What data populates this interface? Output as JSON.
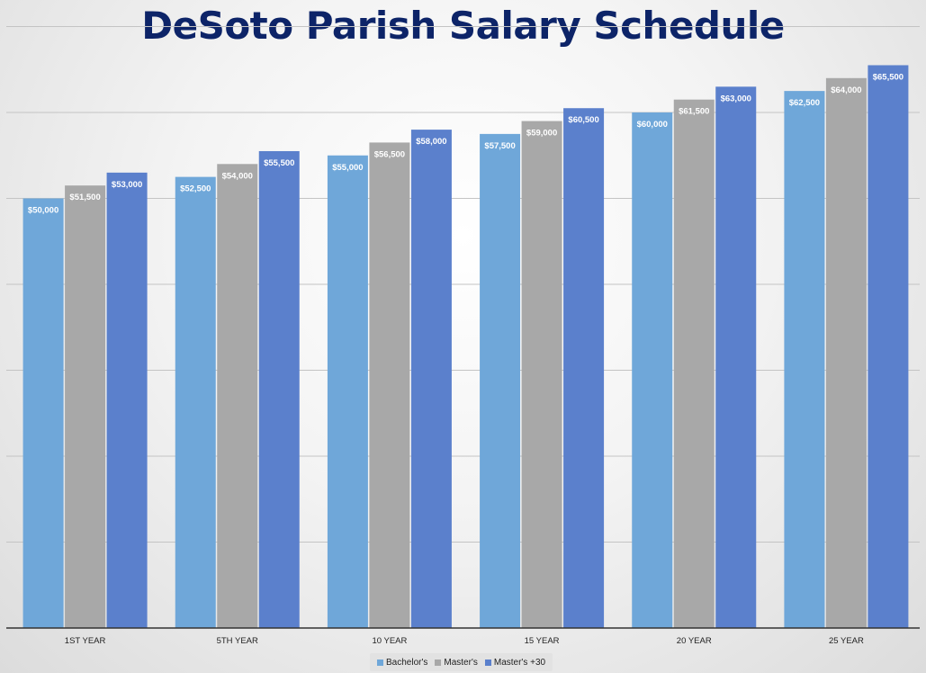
{
  "chart_data": {
    "type": "bar",
    "title": "DeSoto Parish Salary Schedule",
    "categories": [
      "1ST YEAR",
      "5TH YEAR",
      "10 YEAR",
      "15 YEAR",
      "20 YEAR",
      "25 YEAR"
    ],
    "series": [
      {
        "name": "Bachelor's",
        "color": "#6fa7d9",
        "values": [
          50000,
          52500,
          55000,
          57500,
          60000,
          62500
        ],
        "labels": [
          "$50,000",
          "$52,500",
          "$55,000",
          "$57,500",
          "$60,000",
          "$62,500"
        ]
      },
      {
        "name": "Master's",
        "color": "#a8a8a8",
        "values": [
          51500,
          54000,
          56500,
          59000,
          61500,
          64000
        ],
        "labels": [
          "$51,500",
          "$54,000",
          "$56,500",
          "$59,000",
          "$61,500",
          "$64,000"
        ]
      },
      {
        "name": "Master's +30",
        "color": "#5b80cc",
        "values": [
          53000,
          55500,
          58000,
          60500,
          63000,
          65500
        ],
        "labels": [
          "$53,000",
          "$55,500",
          "$58,000",
          "$60,500",
          "$63,000",
          "$65,500"
        ]
      }
    ],
    "ylim": [
      0,
      70000
    ],
    "grid": true,
    "legend_position": "bottom"
  }
}
